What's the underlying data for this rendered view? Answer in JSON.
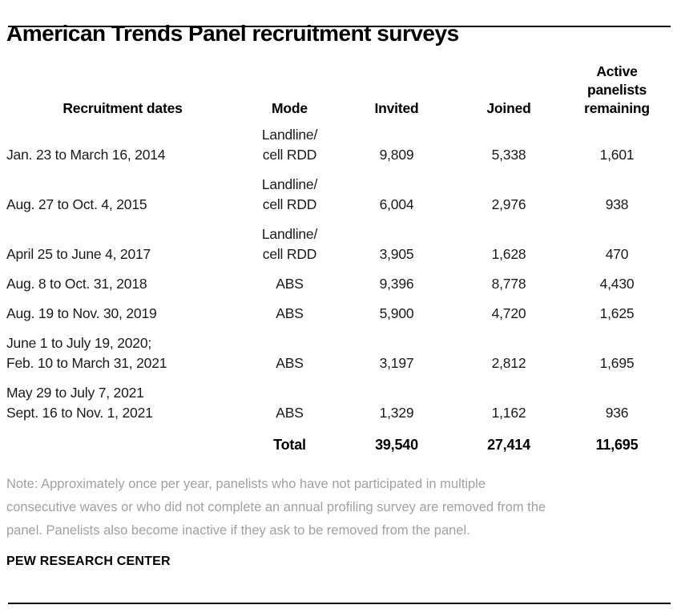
{
  "title": "American Trends Panel recruitment surveys",
  "table": {
    "headers": {
      "dates": "Recruitment dates",
      "mode": "Mode",
      "invited": "Invited",
      "joined": "Joined",
      "active": "Active panelists remaining"
    },
    "rows": [
      {
        "date": "Jan. 23 to March 16, 2014",
        "mode": "Landline/\ncell RDD",
        "invited": "9,809",
        "joined": "5,338",
        "active": "1,601"
      },
      {
        "date": "Aug. 27 to Oct. 4, 2015",
        "mode": "Landline/\ncell RDD",
        "invited": "6,004",
        "joined": "2,976",
        "active": "938"
      },
      {
        "date": "April 25 to June 4, 2017",
        "mode": "Landline/\ncell RDD",
        "invited": "3,905",
        "joined": "1,628",
        "active": "470"
      },
      {
        "date": "Aug. 8 to Oct. 31, 2018",
        "mode": "ABS",
        "invited": "9,396",
        "joined": "8,778",
        "active": "4,430"
      },
      {
        "date": "Aug. 19 to Nov. 30, 2019",
        "mode": "ABS",
        "invited": "5,900",
        "joined": "4,720",
        "active": "1,625"
      },
      {
        "date": "June 1 to July 19, 2020;\nFeb. 10 to March 31, 2021",
        "mode": "ABS",
        "invited": "3,197",
        "joined": "2,812",
        "active": "1,695"
      },
      {
        "date": "May 29 to July 7, 2021\nSept. 16 to Nov. 1, 2021",
        "mode": "ABS",
        "invited": "1,329",
        "joined": "1,162",
        "active": "936"
      }
    ],
    "total": {
      "label": "Total",
      "invited": "39,540",
      "joined": "27,414",
      "active": "11,695"
    }
  },
  "note": "Note: Approximately once per year, panelists who have not participated in multiple\nconsecutive waves or who did not complete an annual profiling survey are removed from the\npanel. Panelists also become inactive if they ask to be removed from the panel.",
  "brand": "PEW RESEARCH CENTER",
  "colors": {
    "text": "#1a1a1a",
    "note_gray": "#9fa0a2",
    "rule_black": "#000000"
  },
  "chart_data": {
    "type": "table",
    "title": "American Trends Panel recruitment surveys",
    "columns": [
      "Recruitment dates",
      "Mode",
      "Invited",
      "Joined",
      "Active panelists remaining"
    ],
    "rows": [
      [
        "Jan. 23 to March 16, 2014",
        "Landline/cell RDD",
        9809,
        5338,
        1601
      ],
      [
        "Aug. 27 to Oct. 4, 2015",
        "Landline/cell RDD",
        6004,
        2976,
        938
      ],
      [
        "April 25 to June 4, 2017",
        "Landline/cell RDD",
        3905,
        1628,
        470
      ],
      [
        "Aug. 8 to Oct. 31, 2018",
        "ABS",
        9396,
        8778,
        4430
      ],
      [
        "Aug. 19 to Nov. 30, 2019",
        "ABS",
        5900,
        4720,
        1625
      ],
      [
        "June 1 to July 19, 2020; Feb. 10 to March 31, 2021",
        "ABS",
        3197,
        2812,
        1695
      ],
      [
        "May 29 to July 7, 2021 Sept. 16 to Nov. 1, 2021",
        "ABS",
        1329,
        1162,
        936
      ]
    ],
    "totals": {
      "label": "Total",
      "invited": 39540,
      "joined": 27414,
      "active_panelists_remaining": 11695
    },
    "source": "PEW RESEARCH CENTER"
  }
}
